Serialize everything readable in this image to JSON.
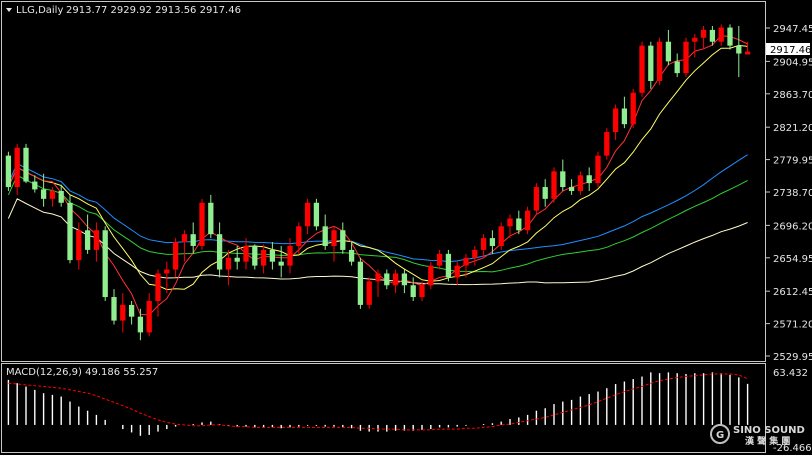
{
  "header": {
    "symbol_label": "LLG,Daily",
    "ohlc": "2913.77 2929.92 2913.56 2917.46"
  },
  "price_axis": {
    "ticks": [
      "2947.45",
      "2904.95",
      "2863.70",
      "2821.20",
      "2779.95",
      "2738.70",
      "2696.20",
      "2654.95",
      "2612.45",
      "2571.20",
      "2529.95"
    ],
    "current_price": "2917.46"
  },
  "macd_panel": {
    "label": "MACD(12,26,9) 49.186 55.257",
    "ticks": [
      "63.432",
      "-26.466"
    ]
  },
  "watermark": {
    "brand": "SINO SOUND",
    "subtitle": "漢 聲 集 團"
  },
  "colors": {
    "background": "#000000",
    "bull_candle": "#ff0000",
    "bear_candle": "#90ee90",
    "ma_yellow": "#ffff66",
    "ma_red": "#ff3333",
    "ma_blue": "#1e90ff",
    "ma_green": "#32cd32",
    "ma_white": "#fffacd",
    "macd_hist": "#ffffff",
    "macd_signal": "#ff0000",
    "grid_border": "#c8c8c8"
  },
  "chart_data": {
    "type": "candlestick",
    "price_range": [
      2529.95,
      2947.45
    ],
    "macd_range": [
      -26.466,
      63.432
    ],
    "candles": [
      [
        2785,
        2790,
        2740,
        2745
      ],
      [
        2745,
        2800,
        2735,
        2795
      ],
      [
        2795,
        2800,
        2750,
        2752
      ],
      [
        2752,
        2760,
        2738,
        2742
      ],
      [
        2742,
        2762,
        2720,
        2730
      ],
      [
        2730,
        2745,
        2720,
        2740
      ],
      [
        2740,
        2748,
        2720,
        2725
      ],
      [
        2725,
        2735,
        2648,
        2652
      ],
      [
        2652,
        2700,
        2640,
        2690
      ],
      [
        2690,
        2710,
        2660,
        2665
      ],
      [
        2665,
        2700,
        2650,
        2690
      ],
      [
        2690,
        2695,
        2600,
        2605
      ],
      [
        2605,
        2615,
        2570,
        2575
      ],
      [
        2575,
        2610,
        2560,
        2595
      ],
      [
        2595,
        2600,
        2570,
        2580
      ],
      [
        2580,
        2590,
        2550,
        2560
      ],
      [
        2560,
        2610,
        2555,
        2600
      ],
      [
        2600,
        2640,
        2580,
        2635
      ],
      [
        2635,
        2650,
        2610,
        2640
      ],
      [
        2640,
        2680,
        2630,
        2675
      ],
      [
        2675,
        2690,
        2650,
        2685
      ],
      [
        2685,
        2700,
        2660,
        2670
      ],
      [
        2670,
        2730,
        2665,
        2725
      ],
      [
        2725,
        2735,
        2680,
        2685
      ],
      [
        2685,
        2700,
        2630,
        2640
      ],
      [
        2640,
        2665,
        2620,
        2655
      ],
      [
        2655,
        2670,
        2640,
        2650
      ],
      [
        2650,
        2680,
        2640,
        2670
      ],
      [
        2670,
        2672,
        2640,
        2645
      ],
      [
        2645,
        2672,
        2635,
        2665
      ],
      [
        2665,
        2675,
        2640,
        2650
      ],
      [
        2650,
        2670,
        2630,
        2645
      ],
      [
        2645,
        2680,
        2635,
        2670
      ],
      [
        2670,
        2700,
        2660,
        2695
      ],
      [
        2695,
        2730,
        2685,
        2725
      ],
      [
        2725,
        2730,
        2690,
        2695
      ],
      [
        2695,
        2710,
        2665,
        2670
      ],
      [
        2670,
        2695,
        2650,
        2690
      ],
      [
        2690,
        2700,
        2660,
        2665
      ],
      [
        2665,
        2675,
        2645,
        2650
      ],
      [
        2650,
        2655,
        2590,
        2595
      ],
      [
        2595,
        2630,
        2590,
        2625
      ],
      [
        2625,
        2640,
        2605,
        2635
      ],
      [
        2635,
        2640,
        2615,
        2620
      ],
      [
        2620,
        2640,
        2610,
        2635
      ],
      [
        2635,
        2640,
        2610,
        2620
      ],
      [
        2620,
        2630,
        2600,
        2605
      ],
      [
        2605,
        2625,
        2600,
        2620
      ],
      [
        2620,
        2650,
        2615,
        2645
      ],
      [
        2645,
        2665,
        2640,
        2660
      ],
      [
        2660,
        2665,
        2625,
        2630
      ],
      [
        2630,
        2650,
        2620,
        2645
      ],
      [
        2645,
        2660,
        2630,
        2655
      ],
      [
        2655,
        2670,
        2645,
        2665
      ],
      [
        2665,
        2685,
        2655,
        2680
      ],
      [
        2680,
        2690,
        2660,
        2670
      ],
      [
        2670,
        2700,
        2665,
        2695
      ],
      [
        2695,
        2710,
        2680,
        2705
      ],
      [
        2705,
        2715,
        2685,
        2690
      ],
      [
        2690,
        2720,
        2685,
        2715
      ],
      [
        2715,
        2750,
        2710,
        2745
      ],
      [
        2745,
        2755,
        2720,
        2730
      ],
      [
        2730,
        2770,
        2725,
        2765
      ],
      [
        2765,
        2780,
        2740,
        2745
      ],
      [
        2745,
        2755,
        2735,
        2740
      ],
      [
        2740,
        2765,
        2735,
        2760
      ],
      [
        2760,
        2770,
        2740,
        2750
      ],
      [
        2750,
        2790,
        2745,
        2785
      ],
      [
        2785,
        2820,
        2780,
        2815
      ],
      [
        2815,
        2850,
        2805,
        2845
      ],
      [
        2845,
        2860,
        2820,
        2825
      ],
      [
        2825,
        2870,
        2820,
        2865
      ],
      [
        2865,
        2930,
        2860,
        2925
      ],
      [
        2925,
        2930,
        2870,
        2880
      ],
      [
        2880,
        2935,
        2875,
        2930
      ],
      [
        2930,
        2945,
        2900,
        2905
      ],
      [
        2905,
        2915,
        2885,
        2890
      ],
      [
        2890,
        2935,
        2885,
        2930
      ],
      [
        2930,
        2940,
        2910,
        2935
      ],
      [
        2935,
        2950,
        2920,
        2945
      ],
      [
        2945,
        2950,
        2925,
        2930
      ],
      [
        2930,
        2952,
        2925,
        2948
      ],
      [
        2948,
        2952,
        2920,
        2925
      ],
      [
        2925,
        2950,
        2885,
        2915
      ],
      [
        2913.77,
        2929.92,
        2913.56,
        2917.46
      ]
    ],
    "macd_hist": [
      54,
      50,
      46,
      42,
      38,
      36,
      34,
      28,
      22,
      17,
      12,
      6,
      0,
      -5,
      -9,
      -13,
      -12,
      -8,
      -5,
      -2,
      0,
      1,
      3,
      4,
      1,
      -1,
      -2,
      -2,
      -3,
      -3,
      -3,
      -4,
      -3,
      -2,
      -1,
      -1,
      -2,
      -2,
      -3,
      -4,
      -7,
      -8,
      -8,
      -8,
      -7,
      -7,
      -7,
      -6,
      -5,
      -3,
      -3,
      -2,
      -1,
      0,
      1,
      2,
      4,
      7,
      9,
      12,
      17,
      20,
      25,
      28,
      30,
      34,
      37,
      40,
      44,
      49,
      52,
      55,
      58,
      63,
      62,
      63,
      62,
      61,
      62,
      62,
      63,
      62,
      60,
      57,
      49.186
    ],
    "macd_signal": [
      50,
      49,
      48,
      47,
      46,
      45,
      44,
      42,
      40,
      38,
      35,
      31,
      27,
      23,
      19,
      14,
      10,
      6,
      3,
      1,
      0,
      -1,
      -1,
      0,
      0,
      -1,
      -2,
      -2,
      -3,
      -3,
      -3,
      -3,
      -3,
      -3,
      -3,
      -3,
      -3,
      -3,
      -3,
      -3,
      -4,
      -4,
      -5,
      -5,
      -5,
      -6,
      -6,
      -6,
      -6,
      -5,
      -5,
      -5,
      -4,
      -4,
      -3,
      -2,
      0,
      1,
      3,
      5,
      7,
      9,
      12,
      15,
      18,
      21,
      24,
      28,
      32,
      36,
      40,
      43,
      46,
      50,
      53,
      55,
      57,
      58,
      59,
      60,
      61,
      61,
      61,
      60,
      55.257
    ]
  }
}
